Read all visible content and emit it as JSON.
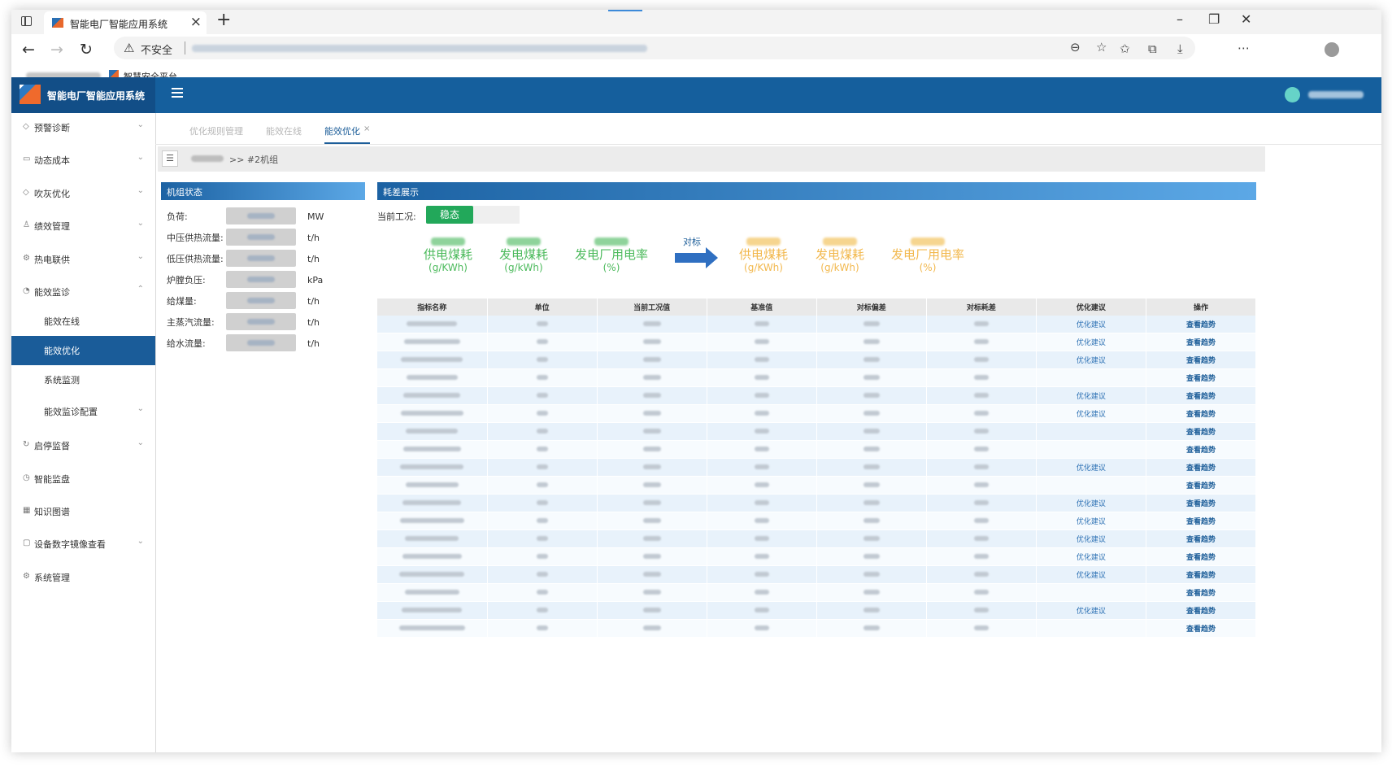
{
  "browser": {
    "tab_title": "智能电厂智能应用系统",
    "not_secure": "不安全",
    "bookmark_label": "智慧安全平台"
  },
  "app": {
    "title": "智能电厂智能应用系统"
  },
  "sidebar": {
    "items": [
      {
        "label": "预警诊断",
        "icon": "shield-icon",
        "expandable": true
      },
      {
        "label": "动态成本",
        "icon": "briefcase-icon",
        "expandable": true
      },
      {
        "label": "吹灰优化",
        "icon": "shield-icon",
        "expandable": true
      },
      {
        "label": "绩效管理",
        "icon": "user-icon",
        "expandable": true
      },
      {
        "label": "热电联供",
        "icon": "gear-icon",
        "expandable": true
      },
      {
        "label": "能效监诊",
        "icon": "gauge-icon",
        "expandable": true,
        "expanded": true
      },
      {
        "label": "能效在线",
        "sub": true
      },
      {
        "label": "能效优化",
        "sub": true,
        "active": true
      },
      {
        "label": "系统监测",
        "sub": true
      },
      {
        "label": "能效监诊配置",
        "sub": true,
        "expandable": true
      },
      {
        "label": "启停监督",
        "icon": "refresh-icon",
        "expandable": true
      },
      {
        "label": "智能监盘",
        "icon": "timer-icon",
        "expandable": false
      },
      {
        "label": "知识图谱",
        "icon": "grid-icon",
        "expandable": false
      },
      {
        "label": "设备数字镜像查看",
        "icon": "chat-icon",
        "expandable": true
      },
      {
        "label": "系统管理",
        "icon": "gear-icon",
        "expandable": false
      }
    ]
  },
  "content_tabs": [
    {
      "label": "优化规则管理"
    },
    {
      "label": "能效在线"
    },
    {
      "label": "能效优化",
      "active": true
    }
  ],
  "breadcrumb": {
    "current": ">> #2机组"
  },
  "unit_status": {
    "title": "机组状态",
    "rows": [
      {
        "label": "负荷:",
        "unit": "MW"
      },
      {
        "label": "中压供热流量:",
        "unit": "t/h"
      },
      {
        "label": "低压供热流量:",
        "unit": "t/h"
      },
      {
        "label": "炉膛负压:",
        "unit": "kPa"
      },
      {
        "label": "给煤量:",
        "unit": "t/h"
      },
      {
        "label": "主蒸汽流量:",
        "unit": "t/h"
      },
      {
        "label": "给水流量:",
        "unit": "t/h"
      }
    ]
  },
  "loss_display": {
    "title": "耗差展示",
    "condition_label": "当前工况:",
    "condition_value": "稳态",
    "benchmark_label": "对标",
    "current_kpis": [
      {
        "name": "供电煤耗",
        "unit": "(g/KWh)"
      },
      {
        "name": "发电煤耗",
        "unit": "(g/kWh)"
      },
      {
        "name": "发电厂用电率",
        "unit": "(%)"
      }
    ],
    "target_kpis": [
      {
        "name": "供电煤耗",
        "unit": "(g/KWh)"
      },
      {
        "name": "发电煤耗",
        "unit": "(g/kWh)"
      },
      {
        "name": "发电厂用电率",
        "unit": "(%)"
      }
    ],
    "colors": {
      "current": "#4cba5c",
      "target": "#f2b84d",
      "steady_badge": "#22a85a"
    }
  },
  "table": {
    "headers": [
      "指标名称",
      "单位",
      "当前工况值",
      "基准值",
      "对标偏差",
      "对标耗差",
      "优化建议",
      "操作"
    ],
    "suggest_label": "优化建议",
    "action_label": "查看趋势",
    "rows_with_suggestion": [
      true,
      true,
      true,
      false,
      true,
      true,
      false,
      false,
      true,
      false,
      true,
      true,
      true,
      true,
      true,
      false,
      true,
      false
    ]
  }
}
